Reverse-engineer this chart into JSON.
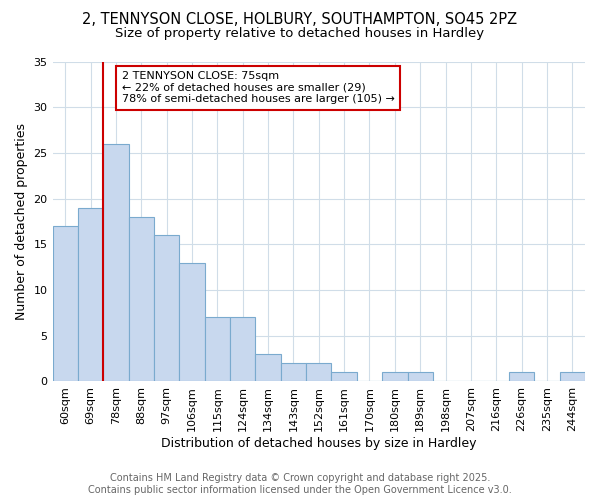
{
  "title": "2, TENNYSON CLOSE, HOLBURY, SOUTHAMPTON, SO45 2PZ",
  "subtitle": "Size of property relative to detached houses in Hardley",
  "xlabel": "Distribution of detached houses by size in Hardley",
  "ylabel": "Number of detached properties",
  "categories": [
    "60sqm",
    "69sqm",
    "78sqm",
    "88sqm",
    "97sqm",
    "106sqm",
    "115sqm",
    "124sqm",
    "134sqm",
    "143sqm",
    "152sqm",
    "161sqm",
    "170sqm",
    "180sqm",
    "189sqm",
    "198sqm",
    "207sqm",
    "216sqm",
    "226sqm",
    "235sqm",
    "244sqm"
  ],
  "values": [
    17,
    19,
    26,
    18,
    16,
    13,
    7,
    7,
    3,
    2,
    2,
    1,
    0,
    1,
    1,
    0,
    0,
    0,
    1,
    0,
    1
  ],
  "bar_color": "#c8d8ee",
  "bar_edge_color": "#7aaace",
  "vline_color": "#cc0000",
  "vline_position": 1.5,
  "annotation_text": "2 TENNYSON CLOSE: 75sqm\n← 22% of detached houses are smaller (29)\n78% of semi-detached houses are larger (105) →",
  "annotation_box_color": "#cc0000",
  "ylim": [
    0,
    35
  ],
  "yticks": [
    0,
    5,
    10,
    15,
    20,
    25,
    30,
    35
  ],
  "footer_line1": "Contains HM Land Registry data © Crown copyright and database right 2025.",
  "footer_line2": "Contains public sector information licensed under the Open Government Licence v3.0.",
  "background_color": "#ffffff",
  "plot_bg_color": "#ffffff",
  "grid_color": "#d0dde8",
  "title_fontsize": 10.5,
  "subtitle_fontsize": 9.5,
  "axis_label_fontsize": 9,
  "tick_fontsize": 8,
  "footer_fontsize": 7,
  "ann_fontsize": 8
}
